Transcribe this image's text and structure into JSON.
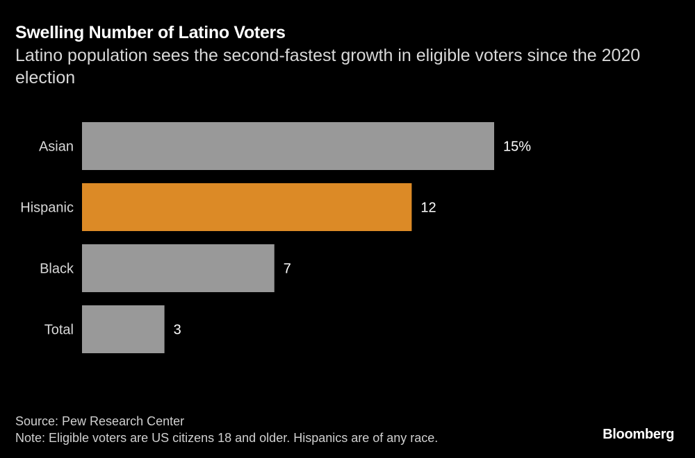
{
  "chart_data": {
    "type": "bar",
    "orientation": "horizontal",
    "title": "Swelling Number of Latino Voters",
    "subtitle": "Latino population sees the second-fastest growth in eligible voters since the 2020 election",
    "categories": [
      "Asian",
      "Hispanic",
      "Black",
      "Total"
    ],
    "values": [
      15,
      12,
      7,
      3
    ],
    "data_labels": [
      "15%",
      "12",
      "7",
      "3"
    ],
    "colors": [
      "#999999",
      "#dc8a26",
      "#999999",
      "#999999"
    ],
    "xlim": [
      0,
      15
    ],
    "grid": false,
    "xlabel": "",
    "ylabel": ""
  },
  "footer": {
    "source": "Source: Pew Research Center",
    "note": "Note: Eligible voters are US citizens 18 and older. Hispanics are of any race.",
    "logo": "Bloomberg"
  }
}
